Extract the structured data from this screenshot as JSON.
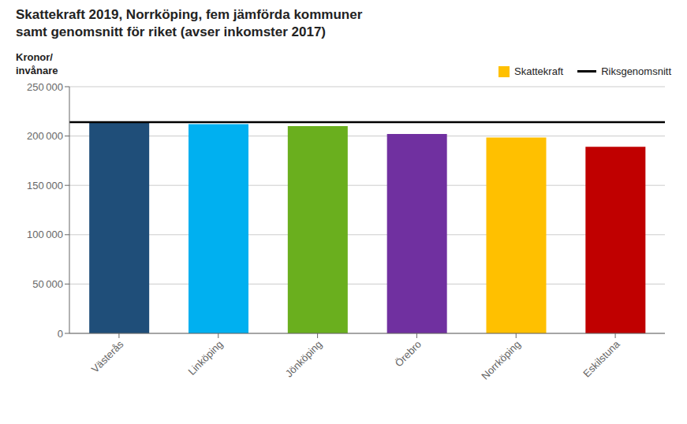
{
  "chart_data": {
    "type": "bar",
    "title": "Skattekraft 2019, Norrköping, fem jämförda kommuner",
    "subtitle": "samt genomsnitt för riket (avser inkomster 2017)",
    "y_label": "Kronor/\ninvånare",
    "categories": [
      "Västerås",
      "Linköping",
      "Jönköping",
      "Örebro",
      "Norrköping",
      "Eskilstuna"
    ],
    "series": [
      {
        "name": "Skattekraft",
        "color": "#FFC000",
        "colors": [
          "#1F4E79",
          "#00B0F0",
          "#6AAF1E",
          "#7030A0",
          "#FFC000",
          "#C00000"
        ],
        "values": [
          214500,
          212000,
          210000,
          202000,
          198500,
          189000
        ]
      }
    ],
    "reference_line": {
      "name": "Riksgenomsnitt",
      "value": 214000,
      "color": "#000000"
    },
    "ylim": [
      0,
      250000
    ],
    "yticks": [
      0,
      {
        "value": 50000,
        "label": "50 000"
      },
      {
        "value": 100000,
        "label": "100 000"
      },
      {
        "value": 150000,
        "label": "150 000"
      },
      {
        "value": 200000,
        "label": "200 000"
      },
      {
        "value": 250000,
        "label": "250 000"
      }
    ],
    "grid": true,
    "legend": "upper right"
  }
}
